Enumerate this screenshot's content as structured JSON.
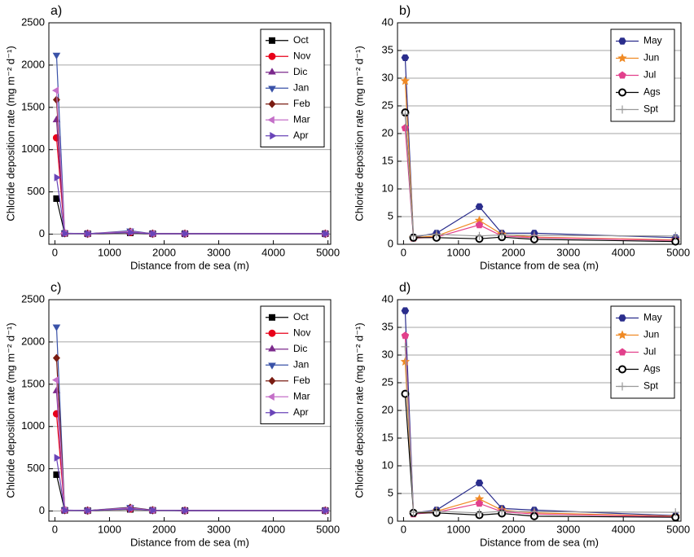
{
  "chart_data": [
    {
      "type": "line",
      "label": "a)",
      "xlabel": "Distance from de sea (m)",
      "ylabel": "Chloride deposition rate (mg m⁻² d⁻¹)",
      "x": [
        30,
        180,
        600,
        1380,
        1790,
        2380,
        4950
      ],
      "xlim": [
        -110,
        5050
      ],
      "xticks": [
        0,
        1000,
        2000,
        3000,
        4000,
        5000
      ],
      "ylim": [
        -120,
        2500
      ],
      "yticks": [
        0,
        500,
        1000,
        1500,
        2000,
        2500
      ],
      "grid": true,
      "legend": "upper right",
      "series": [
        {
          "name": "Oct",
          "color": "#000000",
          "marker": "square",
          "values": [
            420,
            8,
            5,
            15,
            5,
            5,
            5
          ]
        },
        {
          "name": "Nov",
          "color": "#e8001a",
          "marker": "circle",
          "values": [
            1140,
            10,
            5,
            20,
            5,
            5,
            5
          ]
        },
        {
          "name": "Dic",
          "color": "#7b2a8c",
          "marker": "triangle-up",
          "values": [
            1350,
            10,
            5,
            25,
            5,
            5,
            5
          ]
        },
        {
          "name": "Jan",
          "color": "#3a52a8",
          "marker": "triangle-down",
          "values": [
            2120,
            12,
            5,
            40,
            5,
            5,
            5
          ]
        },
        {
          "name": "Feb",
          "color": "#7a1c12",
          "marker": "diamond",
          "values": [
            1590,
            10,
            5,
            30,
            5,
            5,
            5
          ]
        },
        {
          "name": "Mar",
          "color": "#c46fc8",
          "marker": "triangle-left",
          "values": [
            1700,
            10,
            5,
            30,
            5,
            5,
            5
          ]
        },
        {
          "name": "Apr",
          "color": "#6a44b8",
          "marker": "triangle-right",
          "values": [
            670,
            8,
            5,
            20,
            5,
            5,
            5
          ]
        }
      ]
    },
    {
      "type": "line",
      "label": "b)",
      "xlabel": "Distance from de sea (m)",
      "ylabel": "Chloride deposition rate (mg m⁻² d⁻¹)",
      "x": [
        30,
        180,
        600,
        1380,
        1790,
        2380,
        4950
      ],
      "xlim": [
        -110,
        5050
      ],
      "xticks": [
        0,
        1000,
        2000,
        3000,
        4000,
        5000
      ],
      "ylim": [
        0,
        40
      ],
      "yticks": [
        0,
        5,
        10,
        15,
        20,
        25,
        30,
        35,
        40
      ],
      "grid": true,
      "legend": "upper right",
      "series": [
        {
          "name": "May",
          "color": "#2a2d8c",
          "marker": "hexagon",
          "values": [
            33.7,
            1.3,
            2.0,
            6.8,
            2.0,
            2.0,
            1.2
          ]
        },
        {
          "name": "Jun",
          "color": "#f08a24",
          "marker": "star",
          "values": [
            29.5,
            1.2,
            1.5,
            4.3,
            1.8,
            1.3,
            0.8
          ]
        },
        {
          "name": "Jul",
          "color": "#e2408c",
          "marker": "pentagon",
          "values": [
            21.0,
            1.1,
            1.3,
            3.5,
            1.5,
            1.2,
            0.7
          ]
        },
        {
          "name": "Ags",
          "color": "#000000",
          "marker": "open-circle",
          "values": [
            23.8,
            1.2,
            1.2,
            1.0,
            1.3,
            0.9,
            0.5
          ]
        },
        {
          "name": "Spt",
          "color": "#999999",
          "marker": "plus",
          "values": [
            23.5,
            1.5,
            1.8,
            1.5,
            1.7,
            1.6,
            1.5
          ]
        }
      ]
    },
    {
      "type": "line",
      "label": "c)",
      "xlabel": "Distance from de sea (m)",
      "ylabel": "Chloride deposition rate (mg m⁻² d⁻¹)",
      "x": [
        30,
        180,
        600,
        1380,
        1790,
        2380,
        4950
      ],
      "xlim": [
        -110,
        5050
      ],
      "xticks": [
        0,
        1000,
        2000,
        3000,
        4000,
        5000
      ],
      "ylim": [
        -120,
        2500
      ],
      "yticks": [
        0,
        500,
        1000,
        1500,
        2000,
        2500
      ],
      "grid": true,
      "legend": "upper right",
      "series": [
        {
          "name": "Oct",
          "color": "#000000",
          "marker": "square",
          "values": [
            430,
            8,
            5,
            20,
            8,
            5,
            5
          ]
        },
        {
          "name": "Nov",
          "color": "#e8001a",
          "marker": "circle",
          "values": [
            1150,
            10,
            5,
            25,
            8,
            5,
            5
          ]
        },
        {
          "name": "Dic",
          "color": "#7b2a8c",
          "marker": "triangle-up",
          "values": [
            1420,
            10,
            5,
            35,
            8,
            5,
            5
          ]
        },
        {
          "name": "Jan",
          "color": "#3a52a8",
          "marker": "triangle-down",
          "values": [
            2180,
            12,
            5,
            45,
            10,
            5,
            5
          ]
        },
        {
          "name": "Feb",
          "color": "#7a1c12",
          "marker": "diamond",
          "values": [
            1810,
            10,
            5,
            40,
            10,
            5,
            5
          ]
        },
        {
          "name": "Mar",
          "color": "#c46fc8",
          "marker": "triangle-left",
          "values": [
            1550,
            10,
            5,
            35,
            8,
            5,
            5
          ]
        },
        {
          "name": "Apr",
          "color": "#6a44b8",
          "marker": "triangle-right",
          "values": [
            630,
            8,
            5,
            25,
            8,
            5,
            5
          ]
        }
      ]
    },
    {
      "type": "line",
      "label": "d)",
      "xlabel": "Distance from de sea (m)",
      "ylabel": "Chloride deposition rate (mg m⁻² d⁻¹)",
      "x": [
        30,
        180,
        600,
        1380,
        1790,
        2380,
        4950
      ],
      "xlim": [
        -110,
        5050
      ],
      "xticks": [
        0,
        1000,
        2000,
        3000,
        4000,
        5000
      ],
      "ylim": [
        0,
        40
      ],
      "yticks": [
        0,
        5,
        10,
        15,
        20,
        25,
        30,
        35,
        40
      ],
      "grid": true,
      "legend": "upper right",
      "series": [
        {
          "name": "May",
          "color": "#2a2d8c",
          "marker": "hexagon",
          "values": [
            38.0,
            1.5,
            2.0,
            6.9,
            2.3,
            2.0,
            1.0
          ]
        },
        {
          "name": "Jun",
          "color": "#f08a24",
          "marker": "star",
          "values": [
            28.8,
            1.4,
            1.8,
            4.0,
            2.0,
            1.5,
            0.9
          ]
        },
        {
          "name": "Jul",
          "color": "#e2408c",
          "marker": "pentagon",
          "values": [
            33.5,
            1.3,
            1.6,
            3.2,
            1.7,
            1.3,
            0.8
          ]
        },
        {
          "name": "Ags",
          "color": "#000000",
          "marker": "open-circle",
          "values": [
            23.0,
            1.5,
            1.5,
            1.1,
            1.4,
            0.9,
            0.7
          ]
        },
        {
          "name": "Spt",
          "color": "#999999",
          "marker": "plus",
          "values": [
            31.5,
            1.6,
            1.8,
            1.5,
            1.8,
            1.7,
            1.6
          ]
        }
      ]
    }
  ]
}
